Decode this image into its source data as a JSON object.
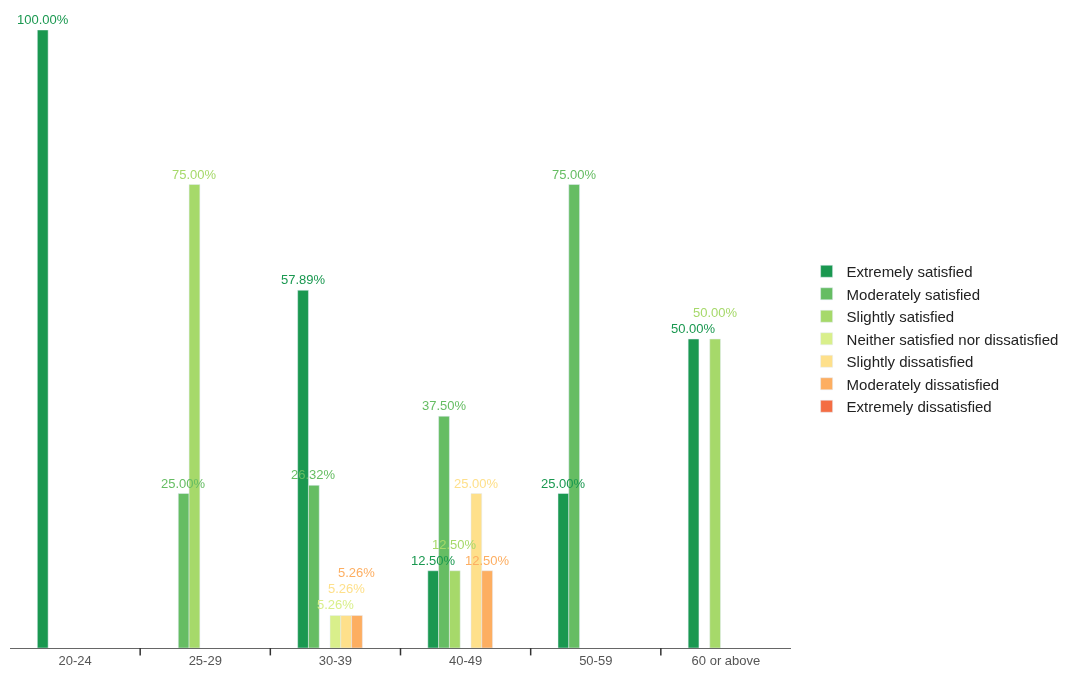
{
  "chart_data": {
    "type": "bar",
    "categories": [
      "20-24",
      "25-29",
      "30-39",
      "40-49",
      "50-59",
      "60 or above"
    ],
    "series": [
      {
        "name": "Extremely satisfied",
        "color": "#1a9850",
        "values": [
          100,
          null,
          57.89,
          12.5,
          25,
          50
        ],
        "value_labels": [
          "100.00%",
          null,
          "57.89%",
          "12.50%",
          "25.00%",
          "50.00%"
        ]
      },
      {
        "name": "Moderately satisfied",
        "color": "#66bd63",
        "values": [
          null,
          25,
          26.32,
          37.5,
          75,
          null
        ],
        "value_labels": [
          null,
          "25.00%",
          "26.32%",
          "37.50%",
          "75.00%",
          null
        ]
      },
      {
        "name": "Slightly satisfied",
        "color": "#a6d96a",
        "values": [
          null,
          75,
          null,
          12.5,
          null,
          50
        ],
        "value_labels": [
          null,
          "75.00%",
          null,
          "12.50%",
          null,
          "50.00%"
        ]
      },
      {
        "name": "Neither satisfied nor dissatisfied",
        "color": "#d9ef8b",
        "values": [
          null,
          null,
          5.26,
          null,
          null,
          null
        ],
        "value_labels": [
          null,
          null,
          "5.26%",
          null,
          null,
          null
        ]
      },
      {
        "name": "Slightly dissatisfied",
        "color": "#fee08b",
        "values": [
          null,
          null,
          5.26,
          25,
          null,
          null
        ],
        "value_labels": [
          null,
          null,
          "5.26%",
          "25.00%",
          null,
          null
        ]
      },
      {
        "name": "Moderately dissatisfied",
        "color": "#fdae61",
        "values": [
          null,
          null,
          5.26,
          12.5,
          null,
          null
        ],
        "value_labels": [
          null,
          null,
          "5.26%",
          "12.50%",
          null,
          null
        ]
      },
      {
        "name": "Extremely dissatisfied",
        "color": "#f46d43",
        "values": [
          null,
          null,
          null,
          null,
          null,
          null
        ],
        "value_labels": [
          null,
          null,
          null,
          null,
          null,
          null
        ]
      }
    ],
    "legend": "right"
  }
}
